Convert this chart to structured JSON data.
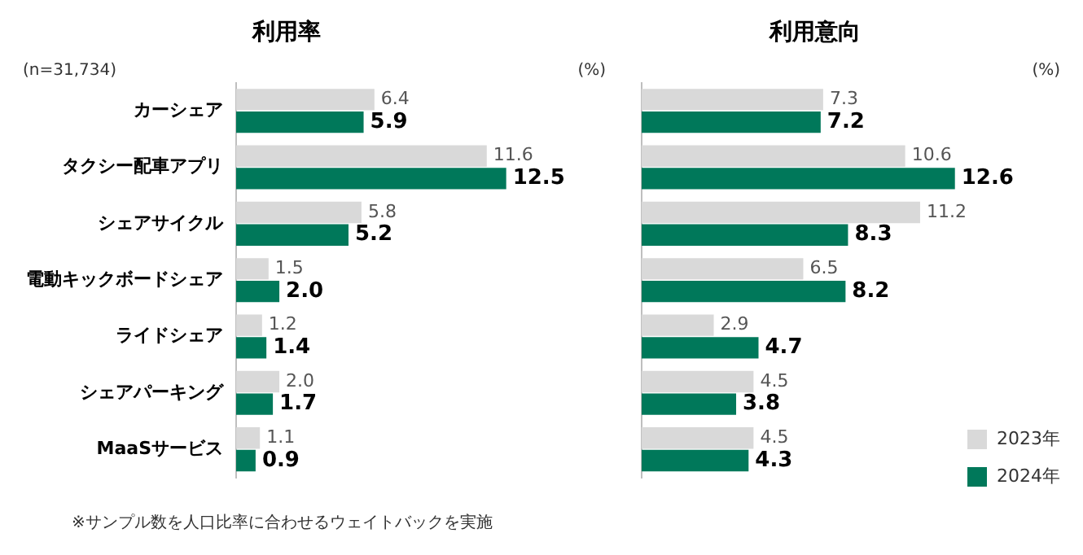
{
  "chart_data": [
    {
      "type": "bar",
      "orientation": "horizontal",
      "title": "利用率",
      "categories": [
        "カーシェア",
        "タクシー配車アプリ",
        "シェアサイクル",
        "電動キックボードシェア",
        "ライドシェア",
        "シェアパーキング",
        "MaaSサービス"
      ],
      "series": [
        {
          "color": "#d9d9d9",
          "values": [
            6.4,
            11.6,
            5.8,
            1.5,
            1.2,
            2.0,
            1.1
          ],
          "value_labels": [
            "6.4",
            "11.6",
            "5.8",
            "1.5",
            "1.2",
            "2.0",
            "1.1"
          ]
        },
        {
          "color": "#00785a",
          "values": [
            5.9,
            12.5,
            5.2,
            2.0,
            1.4,
            1.7,
            0.9
          ],
          "value_labels": [
            "5.9",
            "12.5",
            "5.2",
            "2.0",
            "1.4",
            "1.7",
            "0.9"
          ]
        }
      ],
      "legend": false,
      "grid": false,
      "annotations": [
        "(n=31,734)",
        "(%)",
        "※サンプル数を人口比率に合わせるウェイトバックを実施"
      ]
    },
    {
      "type": "bar",
      "orientation": "horizontal",
      "title": "利用意向",
      "categories": [
        null,
        null,
        null,
        null,
        null,
        null,
        null
      ],
      "series": [
        {
          "name": "2023年",
          "color": "#d9d9d9",
          "values": [
            7.3,
            10.6,
            11.2,
            6.5,
            2.9,
            4.5,
            4.5
          ],
          "value_labels": [
            "7.3",
            "10.6",
            "11.2",
            "6.5",
            "2.9",
            "4.5",
            "4.5"
          ]
        },
        {
          "name": "2024年",
          "color": "#00785a",
          "values": [
            7.2,
            12.6,
            8.3,
            8.2,
            4.7,
            3.8,
            4.3
          ],
          "value_labels": [
            "7.2",
            "12.6",
            "8.3",
            "8.2",
            "4.7",
            "3.8",
            "4.3"
          ]
        }
      ],
      "legend": "bottom right",
      "grid": false,
      "annotations": [
        "(%)"
      ]
    }
  ]
}
